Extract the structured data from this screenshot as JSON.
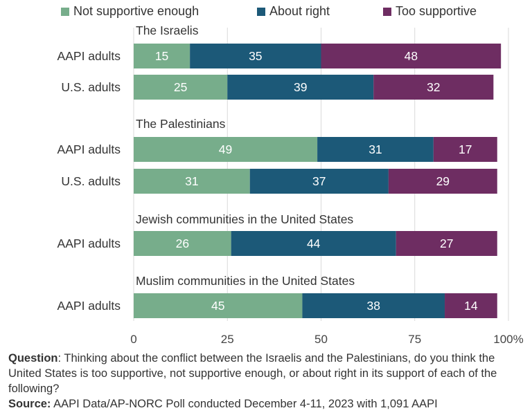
{
  "chart_data": {
    "type": "bar",
    "orientation": "horizontal",
    "stacked": true,
    "legend": [
      {
        "name": "Not supportive enough",
        "color": "#77ad8b"
      },
      {
        "name": "About right",
        "color": "#1c5978"
      },
      {
        "name": "Too supportive",
        "color": "#6e2d62"
      }
    ],
    "groups": [
      {
        "title": "The Israelis",
        "rows": [
          {
            "label": "AAPI adults",
            "values": [
              15,
              35,
              48
            ]
          },
          {
            "label": "U.S. adults",
            "values": [
              25,
              39,
              32
            ]
          }
        ]
      },
      {
        "title": "The Palestinians",
        "rows": [
          {
            "label": "AAPI adults",
            "values": [
              49,
              31,
              17
            ]
          },
          {
            "label": "U.S. adults",
            "values": [
              31,
              37,
              29
            ]
          }
        ]
      },
      {
        "title": "Jewish communities in the United States",
        "rows": [
          {
            "label": "AAPI adults",
            "values": [
              26,
              44,
              27
            ]
          }
        ]
      },
      {
        "title": "Muslim communities in the United States",
        "rows": [
          {
            "label": "AAPI adults",
            "values": [
              45,
              38,
              14
            ]
          }
        ]
      }
    ],
    "xlim": [
      0,
      100
    ],
    "xticks": [
      "0",
      "25",
      "50",
      "75",
      "100%"
    ],
    "grid": true
  },
  "footnote": {
    "question_label": "Question",
    "question_text": ": Thinking about the conflict between the Israelis and the Palestinians, do you think the United States is too supportive, not supportive enough, or about right in its support of each of the following?",
    "source_label": "Source:",
    "source_text": " AAPI Data/AP-NORC Poll conducted December 4-11, 2023 with 1,091 AAPI"
  }
}
